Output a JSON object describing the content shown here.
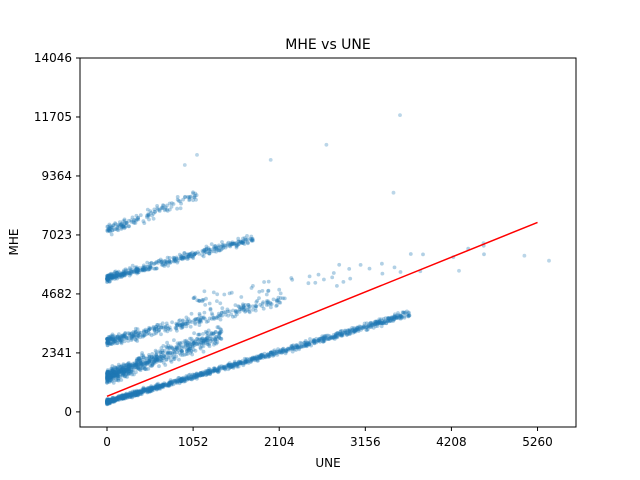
{
  "chart_data": {
    "type": "scatter",
    "title": "MHE vs UNE",
    "xlabel": "UNE",
    "ylabel": "MHE",
    "xlim": [
      -330,
      5730
    ],
    "ylim": [
      -600,
      14046
    ],
    "x_ticks": [
      0,
      1052,
      2104,
      3156,
      4208,
      5260
    ],
    "x_tick_labels": [
      "0",
      "1052",
      "2104",
      "3156",
      "4208",
      "5260"
    ],
    "y_ticks": [
      0,
      2341,
      4682,
      7023,
      9364,
      11705,
      14046
    ],
    "y_tick_labels": [
      "0",
      "2341",
      "4682",
      "7023",
      "9364",
      "11705",
      "14046"
    ],
    "grid": false,
    "point_color": "#1f77b4",
    "trend_color": "#ff0000",
    "bands": [
      {
        "x": [
          0,
          3700
        ],
        "y0": [
          400,
          3900
        ],
        "spread": [
          150,
          250
        ],
        "n": 1200
      },
      {
        "x": [
          0,
          1400
        ],
        "y0": [
          1400,
          3100
        ],
        "spread": [
          450,
          650
        ],
        "n": 700
      },
      {
        "x": [
          0,
          2200
        ],
        "y0": [
          2800,
          4500
        ],
        "spread": [
          350,
          400
        ],
        "n": 380
      },
      {
        "x": [
          0,
          1800
        ],
        "y0": [
          5300,
          6900
        ],
        "spread": [
          250,
          300
        ],
        "n": 420
      },
      {
        "x": [
          0,
          1100
        ],
        "y0": [
          7200,
          8600
        ],
        "spread": [
          350,
          400
        ],
        "n": 140
      },
      {
        "x": [
          1000,
          4800
        ],
        "y0": [
          4400,
          6500
        ],
        "spread": [
          500,
          800
        ],
        "n": 60
      }
    ],
    "outliers": [
      {
        "x": 3580,
        "y": 11780
      },
      {
        "x": 1100,
        "y": 10200
      },
      {
        "x": 2000,
        "y": 10000
      },
      {
        "x": 2680,
        "y": 10600
      },
      {
        "x": 950,
        "y": 9800
      },
      {
        "x": 3500,
        "y": 8700
      },
      {
        "x": 5100,
        "y": 6200
      },
      {
        "x": 5400,
        "y": 6000
      },
      {
        "x": 4600,
        "y": 6700
      },
      {
        "x": 4300,
        "y": 5600
      }
    ],
    "trend_line": {
      "x": [
        0,
        5260
      ],
      "y": [
        620,
        7520
      ]
    }
  }
}
